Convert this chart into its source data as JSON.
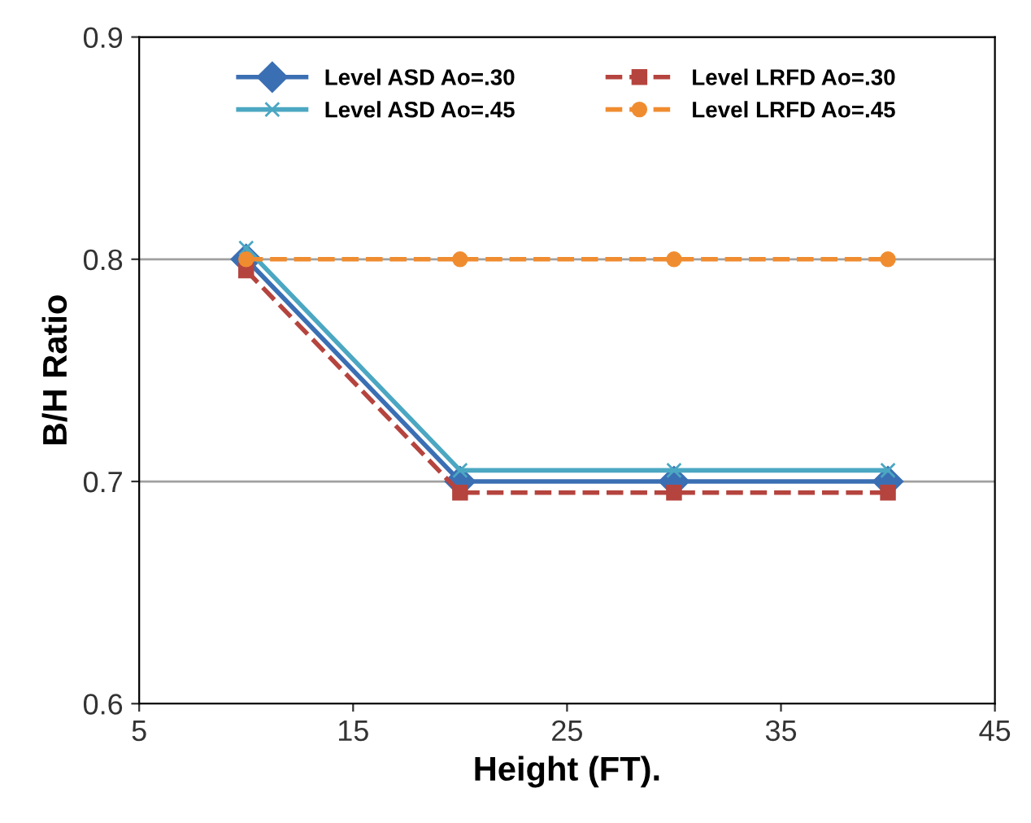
{
  "chart_data": {
    "type": "line",
    "xlabel": "Height (FT).",
    "ylabel": "B/H Ratio",
    "x": [
      10,
      20,
      30,
      40
    ],
    "series": [
      {
        "name": "Level ASD Ao=.30",
        "color": "#3b6fb4",
        "marker": "diamond",
        "line_style": "solid",
        "values": [
          0.8,
          0.7,
          0.7,
          0.7
        ]
      },
      {
        "name": "Level LRFD Ao=.30",
        "color": "#b5443e",
        "marker": "square",
        "line_style": "dashed",
        "values": [
          0.795,
          0.695,
          0.695,
          0.695
        ]
      },
      {
        "name": "Level ASD Ao=.45",
        "color": "#4ba7c2",
        "marker": "cross",
        "line_style": "solid",
        "values": [
          0.805,
          0.705,
          0.705,
          0.705
        ]
      },
      {
        "name": "Level LRFD Ao=.45",
        "color": "#f08c30",
        "marker": "circle",
        "line_style": "dashed",
        "values": [
          0.8,
          0.8,
          0.8,
          0.8
        ]
      }
    ],
    "xlim": [
      5,
      45
    ],
    "xticks": [
      5,
      15,
      25,
      35,
      45
    ],
    "ylim": [
      0.6,
      0.9
    ],
    "yticks": [
      0.6,
      0.7,
      0.8,
      0.9
    ],
    "grid": "y",
    "legend": "top"
  }
}
